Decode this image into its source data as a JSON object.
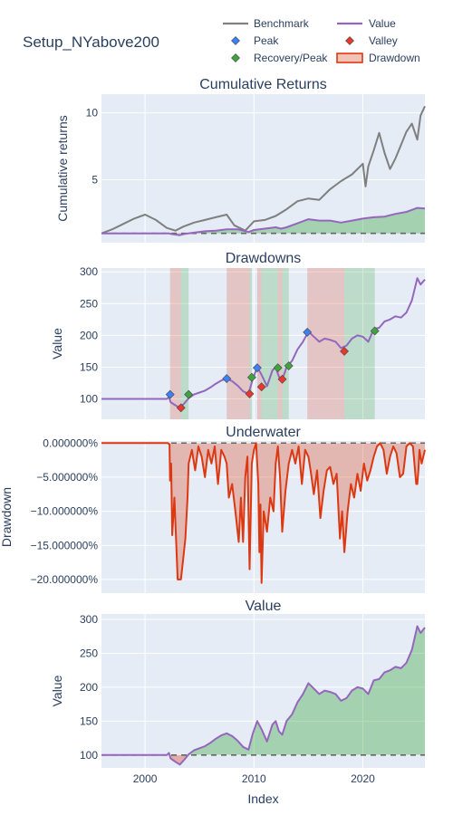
{
  "title": "Setup_NYabove200",
  "colors": {
    "benchmark": "#7f7f7f",
    "value": "#9467bd",
    "peak": "#3b82f6",
    "valley": "#e8372c",
    "recovery": "#3fa33f",
    "drawdown_line": "#dc3912",
    "drawdown_fill": "rgba(220,57,18,0.30)",
    "gain_fill": "rgba(44,160,44,0.35)",
    "loss_fill": "rgba(220,57,18,0.35)",
    "bg": "#e5ecf6"
  },
  "legend": {
    "benchmark": "Benchmark",
    "value": "Value",
    "peak": "Peak",
    "valley": "Valley",
    "recovery": "Recovery/Peak",
    "drawdown": "Drawdown"
  },
  "x_axis": {
    "title": "Index",
    "ticks": [
      "2000",
      "2010",
      "2020"
    ],
    "tick_values": [
      2000,
      2010,
      2020
    ],
    "range": [
      1996.0,
      2025.7
    ]
  },
  "chart_data": [
    {
      "type": "line",
      "title": "Cumulative Returns",
      "ylabel": "Cumulative returns",
      "ylim": [
        0.3,
        11.4
      ],
      "yticks": [
        5,
        10
      ],
      "yticklabels": [
        "5",
        "10"
      ],
      "baseline": 1,
      "series": [
        {
          "name": "Benchmark",
          "x": [
            1996.0,
            1997.0,
            1998.0,
            1999.0,
            2000.0,
            2001.0,
            2002.0,
            2002.8,
            2003.5,
            2004.5,
            2005.5,
            2006.5,
            2007.5,
            2008.2,
            2009.2,
            2010.0,
            2011.0,
            2012.0,
            2013.0,
            2014.0,
            2015.0,
            2016.0,
            2017.0,
            2018.0,
            2019.0,
            2020.0,
            2020.25,
            2020.5,
            2021.0,
            2021.5,
            2022.0,
            2022.5,
            2023.0,
            2023.5,
            2024.0,
            2024.5,
            2025.0,
            2025.3,
            2025.7
          ],
          "values": [
            1.0,
            1.3,
            1.7,
            2.1,
            2.4,
            2.0,
            1.4,
            1.2,
            1.5,
            1.8,
            2.0,
            2.2,
            2.4,
            1.6,
            1.2,
            1.9,
            2.0,
            2.3,
            2.8,
            3.4,
            3.6,
            3.5,
            4.3,
            4.9,
            5.4,
            6.2,
            4.5,
            6.0,
            7.2,
            8.5,
            7.0,
            5.8,
            6.6,
            7.6,
            8.6,
            9.2,
            8.0,
            9.8,
            10.5
          ]
        },
        {
          "name": "Value",
          "x": [
            1996.0,
            2002.2,
            2002.4,
            2003.2,
            2003.6,
            2004.5,
            2005.5,
            2006.5,
            2007.5,
            2008.5,
            2009.5,
            2010.0,
            2011.0,
            2012.0,
            2012.5,
            2013.0,
            2014.0,
            2015.0,
            2016.0,
            2017.0,
            2018.0,
            2019.0,
            2020.0,
            2021.0,
            2022.0,
            2023.0,
            2024.0,
            2024.5,
            2025.0,
            2025.7
          ],
          "values": [
            1.0,
            1.0,
            0.95,
            0.86,
            0.95,
            1.05,
            1.15,
            1.2,
            1.3,
            1.3,
            1.1,
            1.25,
            1.35,
            1.45,
            1.35,
            1.45,
            1.75,
            2.05,
            1.95,
            1.95,
            1.8,
            1.95,
            2.1,
            2.2,
            2.25,
            2.45,
            2.6,
            2.75,
            2.9,
            2.85
          ]
        }
      ]
    },
    {
      "type": "line",
      "title": "Drawdowns",
      "ylabel": "Value",
      "ylim": [
        68,
        306
      ],
      "yticks": [
        100,
        150,
        200,
        250,
        300
      ],
      "yticklabels": [
        "100",
        "150",
        "200",
        "250",
        "300"
      ],
      "series": [
        {
          "name": "Value",
          "x": [
            1996.0,
            2002.0,
            2002.2,
            2002.35,
            2002.8,
            2003.2,
            2003.6,
            2004.0,
            2004.5,
            2005.0,
            2005.5,
            2006.0,
            2006.5,
            2007.0,
            2007.5,
            2008.0,
            2008.5,
            2009.0,
            2009.5,
            2009.9,
            2010.3,
            2010.7,
            2011.2,
            2011.7,
            2012.0,
            2012.3,
            2012.6,
            2013.0,
            2013.5,
            2014.0,
            2014.5,
            2015.0,
            2015.5,
            2016.0,
            2016.5,
            2017.0,
            2017.5,
            2018.0,
            2018.5,
            2019.0,
            2019.5,
            2020.0,
            2020.5,
            2021.0,
            2021.5,
            2022.0,
            2022.5,
            2023.0,
            2023.5,
            2024.0,
            2024.5,
            2025.0,
            2025.3,
            2025.7
          ],
          "values": [
            100,
            100,
            103,
            95,
            90,
            86,
            93,
            101,
            107,
            110,
            113,
            118,
            124,
            129,
            132,
            128,
            121,
            112,
            108,
            132,
            150,
            138,
            120,
            145,
            150,
            135,
            130,
            150,
            160,
            178,
            190,
            206,
            198,
            190,
            195,
            193,
            190,
            180,
            184,
            195,
            200,
            198,
            190,
            210,
            212,
            222,
            225,
            230,
            228,
            236,
            255,
            290,
            280,
            288
          ]
        }
      ],
      "peaks": [
        {
          "x": 2002.3,
          "value": 107
        },
        {
          "x": 2007.5,
          "value": 132
        },
        {
          "x": 2010.3,
          "value": 149
        },
        {
          "x": 2014.9,
          "value": 205
        }
      ],
      "valleys": [
        {
          "x": 2003.3,
          "value": 86
        },
        {
          "x": 2009.6,
          "value": 108
        },
        {
          "x": 2010.7,
          "value": 119
        },
        {
          "x": 2012.6,
          "value": 131
        },
        {
          "x": 2018.3,
          "value": 175
        }
      ],
      "recoveries": [
        {
          "x": 2004.0,
          "value": 107
        },
        {
          "x": 2009.8,
          "value": 134
        },
        {
          "x": 2012.2,
          "value": 149
        },
        {
          "x": 2013.2,
          "value": 152
        },
        {
          "x": 2021.1,
          "value": 207
        }
      ],
      "drawdown_periods": [
        {
          "start": 2002.3,
          "valley": 2003.3,
          "end": 2004.0
        },
        {
          "start": 2007.5,
          "valley": 2009.6,
          "end": 2009.8
        },
        {
          "start": 2010.3,
          "valley": 2010.7,
          "end": 2012.2
        },
        {
          "start": 2012.2,
          "valley": 2012.6,
          "end": 2013.2
        },
        {
          "start": 2014.9,
          "valley": 2018.3,
          "end": 2021.1
        }
      ]
    },
    {
      "type": "area",
      "title": "Underwater",
      "ylabel": "Drawdown",
      "ylim": [
        -22.0,
        0.3
      ],
      "yticks": [
        0,
        -5,
        -10,
        -15,
        -20
      ],
      "yticklabels": [
        "0.000000%",
        "−5.000000%",
        "−10.000000%",
        "−15.000000%",
        "−20.000000%"
      ],
      "series": [
        {
          "name": "Drawdown",
          "x": [
            1996.0,
            2002.1,
            2002.25,
            2002.3,
            2002.4,
            2002.5,
            2002.7,
            2003.0,
            2003.2,
            2003.3,
            2003.5,
            2003.7,
            2003.9,
            2004.0,
            2004.3,
            2004.6,
            2004.9,
            2005.2,
            2005.5,
            2005.8,
            2006.1,
            2006.4,
            2006.7,
            2007.0,
            2007.3,
            2007.5,
            2007.7,
            2008.0,
            2008.3,
            2008.6,
            2008.8,
            2009.0,
            2009.2,
            2009.4,
            2009.6,
            2009.8,
            2010.0,
            2010.2,
            2010.4,
            2010.5,
            2010.6,
            2010.7,
            2010.9,
            2011.2,
            2011.5,
            2011.8,
            2012.0,
            2012.2,
            2012.4,
            2012.6,
            2012.9,
            2013.2,
            2013.5,
            2013.8,
            2014.1,
            2014.4,
            2014.7,
            2015.0,
            2015.2,
            2015.5,
            2015.8,
            2016.1,
            2016.4,
            2016.7,
            2017.0,
            2017.3,
            2017.6,
            2017.9,
            2018.1,
            2018.3,
            2018.6,
            2018.9,
            2019.2,
            2019.5,
            2019.8,
            2020.1,
            2020.4,
            2020.7,
            2021.0,
            2021.3,
            2021.6,
            2021.9,
            2022.2,
            2022.5,
            2022.8,
            2023.1,
            2023.4,
            2023.7,
            2024.0,
            2024.3,
            2024.6,
            2024.9,
            2025.0,
            2025.1,
            2025.2,
            2025.4,
            2025.7
          ],
          "values": [
            0,
            0,
            -0.2,
            -5.5,
            -3.0,
            -13.5,
            -8.0,
            -20.0,
            -20.0,
            -20.0,
            -17.0,
            -14.0,
            -8.0,
            -3.0,
            -1.0,
            -4.0,
            -0.5,
            -2.0,
            -5.0,
            -1.0,
            -3.0,
            -0.5,
            -6.0,
            -1.0,
            -2.0,
            -3.0,
            -8.0,
            -6.0,
            -10.0,
            -14.5,
            -8.0,
            -14.5,
            -5.0,
            -2.0,
            -18.5,
            -3.0,
            -1.0,
            0,
            -6.0,
            -16.0,
            -9.0,
            -20.5,
            -10.0,
            -13.0,
            -8.0,
            -10.0,
            -3.0,
            -0.5,
            -5.0,
            -13.0,
            -7.0,
            -3.0,
            -1.0,
            -3.0,
            -0.5,
            -6.0,
            -1.0,
            -2.0,
            -4.0,
            -7.5,
            -4.0,
            -11.0,
            -7.0,
            -4.0,
            -3.5,
            -6.0,
            -4.5,
            -14.0,
            -10.0,
            -16.0,
            -10.0,
            -6.0,
            -8.0,
            -4.5,
            -7.0,
            -3.0,
            -5.5,
            -4.0,
            -2.0,
            -0.5,
            0,
            -1.0,
            -4.5,
            -2.0,
            -0.5,
            -1.5,
            -5.0,
            -4.5,
            -0.5,
            0,
            -0.5,
            -6.0,
            -6.0,
            -4.0,
            -1.0,
            -3.0,
            -1.0
          ]
        }
      ]
    },
    {
      "type": "line",
      "title": "Value",
      "ylabel": "Value",
      "ylim": [
        81,
        308
      ],
      "yticks": [
        100,
        150,
        200,
        250,
        300
      ],
      "yticklabels": [
        "100",
        "150",
        "200",
        "250",
        "300"
      ],
      "baseline": 100,
      "series": [
        {
          "name": "Value",
          "x": [
            1996.0,
            2002.0,
            2002.2,
            2002.35,
            2002.8,
            2003.2,
            2003.6,
            2004.0,
            2004.5,
            2005.0,
            2005.5,
            2006.0,
            2006.5,
            2007.0,
            2007.5,
            2008.0,
            2008.5,
            2009.0,
            2009.5,
            2009.9,
            2010.3,
            2010.7,
            2011.2,
            2011.7,
            2012.0,
            2012.3,
            2012.6,
            2013.0,
            2013.5,
            2014.0,
            2014.5,
            2015.0,
            2015.5,
            2016.0,
            2016.5,
            2017.0,
            2017.5,
            2018.0,
            2018.5,
            2019.0,
            2019.5,
            2020.0,
            2020.5,
            2021.0,
            2021.5,
            2022.0,
            2022.5,
            2023.0,
            2023.5,
            2024.0,
            2024.5,
            2025.0,
            2025.3,
            2025.7
          ],
          "values": [
            100,
            100,
            103,
            95,
            90,
            86,
            93,
            101,
            107,
            110,
            113,
            118,
            124,
            129,
            132,
            128,
            121,
            112,
            108,
            132,
            150,
            138,
            120,
            145,
            150,
            135,
            130,
            150,
            160,
            178,
            190,
            206,
            198,
            190,
            195,
            193,
            190,
            180,
            184,
            195,
            200,
            198,
            190,
            210,
            212,
            222,
            225,
            230,
            228,
            236,
            255,
            290,
            280,
            288
          ]
        }
      ]
    }
  ]
}
